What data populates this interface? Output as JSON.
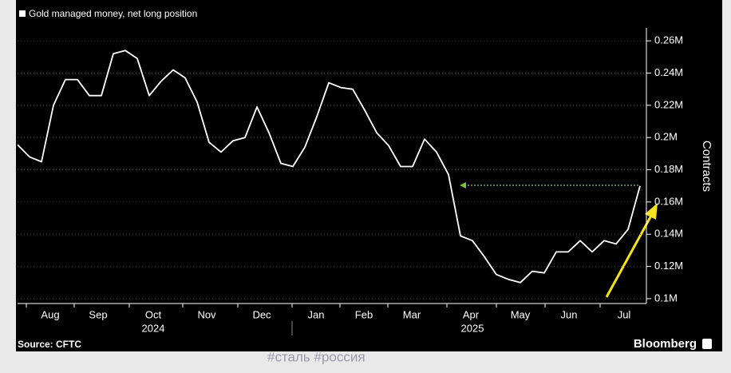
{
  "chart_data": {
    "type": "line",
    "title": "Gold managed money, net long position",
    "y_axis_label": "Contracts",
    "source": "Source: CFTC",
    "brand": "Bloomberg",
    "months": [
      "Aug",
      "Sep",
      "Oct",
      "Nov",
      "Dec",
      "Jan",
      "Feb",
      "Mar",
      "Apr",
      "May",
      "Jun",
      "Jul"
    ],
    "years": [
      "2024",
      "2025"
    ],
    "series": [
      {
        "name": "Gold managed money, net long position",
        "color": "#ffffff",
        "values": [
          195500,
          188000,
          185000,
          220000,
          236000,
          236000,
          226000,
          226000,
          252000,
          254000,
          249000,
          226000,
          235000,
          242000,
          237000,
          222000,
          197000,
          191000,
          198000,
          200000,
          219000,
          203000,
          184000,
          182000,
          194000,
          213000,
          234000,
          231000,
          230000,
          217000,
          203000,
          195000,
          182000,
          182000,
          199000,
          191000,
          177000,
          139000,
          136000,
          126000,
          115000,
          112000,
          110000,
          117000,
          116000,
          129000,
          129000,
          136000,
          129000,
          136000,
          134000,
          143000,
          170000
        ]
      }
    ],
    "ylim": [
      97000,
      268000
    ],
    "yticks": [
      {
        "value": 100000,
        "label": "0.1M"
      },
      {
        "value": 120000,
        "label": "0.12M"
      },
      {
        "value": 140000,
        "label": "0.14M"
      },
      {
        "value": 160000,
        "label": "0.16M"
      },
      {
        "value": 180000,
        "label": "0.18M"
      },
      {
        "value": 200000,
        "label": "0.2M"
      },
      {
        "value": 220000,
        "label": "0.22M"
      },
      {
        "value": 240000,
        "label": "0.24M"
      },
      {
        "value": 260000,
        "label": "0.26M"
      }
    ],
    "grid": true
  },
  "footer_text": "#сталь #россия"
}
